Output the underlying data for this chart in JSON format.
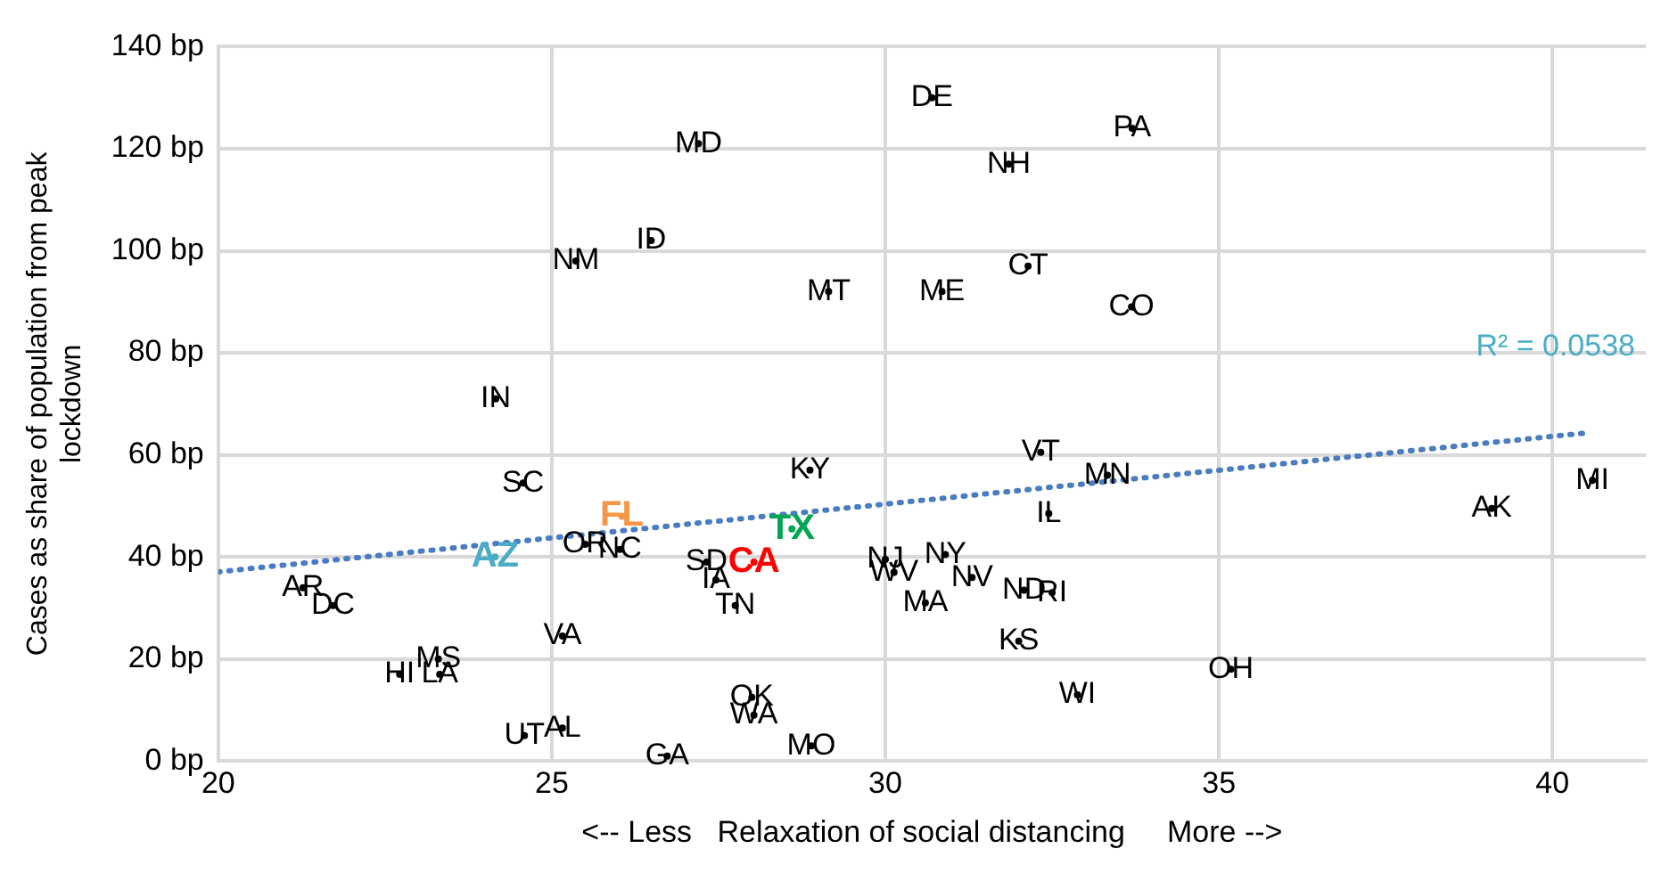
{
  "chart_data": {
    "type": "scatter",
    "xlabel": "<-- Less   Relaxation of social distancing     More -->",
    "ylabel": "Cases as share of population from peak lockdown",
    "xlim": [
      20,
      41.4
    ],
    "xticks": [
      20,
      25,
      30,
      35,
      40
    ],
    "ylim": [
      0,
      140
    ],
    "yticks": [
      {
        "value": 0,
        "label": "0 bp"
      },
      {
        "value": 20,
        "label": "20 bp"
      },
      {
        "value": 40,
        "label": "40 bp"
      },
      {
        "value": 60,
        "label": "60 bp"
      },
      {
        "value": 80,
        "label": "80 bp"
      },
      {
        "value": 100,
        "label": "100 bp"
      },
      {
        "value": 120,
        "label": "120 bp"
      },
      {
        "value": 140,
        "label": "140 bp"
      }
    ],
    "grid": true,
    "legend": false,
    "marker": "circle",
    "annotations": [
      "R² = 0.0538"
    ],
    "series": [
      {
        "type": "scatter",
        "color": "#000000",
        "x": [
          30.7,
          27.2,
          33.7,
          31.85,
          25.36,
          26.49,
          29.15,
          30.85,
          32.14,
          33.69,
          24.16,
          24.57,
          26.05,
          24.15,
          25.5,
          26.02,
          27.32,
          28.03,
          28.6,
          28.87,
          27.46,
          27.75,
          21.27,
          21.72,
          25.16,
          23.3,
          22.72,
          23.32,
          24.59,
          25.16,
          26.73,
          28.0,
          28.03,
          28.89,
          30.0,
          30.13,
          30.9,
          31.3,
          30.6,
          32.08,
          32.5,
          32.0,
          32.88,
          35.18,
          32.33,
          33.33,
          32.45,
          39.09,
          40.6
        ],
        "values": [
          130,
          121,
          124,
          117,
          98,
          102,
          92,
          92,
          97,
          89,
          71,
          54.5,
          48,
          40,
          42.5,
          41.5,
          39,
          39,
          45.5,
          57,
          35.5,
          30.5,
          34,
          30.5,
          24.5,
          20,
          17,
          17,
          5,
          6.5,
          1,
          12.5,
          9,
          3,
          39.5,
          37,
          40.5,
          36,
          31,
          33.5,
          33,
          23.5,
          13,
          18,
          60.5,
          56,
          48.5,
          49.5,
          55
        ],
        "value_labels": [
          "DE",
          "MD",
          "PA",
          "NH",
          "NM",
          "ID",
          "MT",
          "ME",
          "CT",
          "CO",
          "IN",
          "SC",
          "FL",
          "AZ",
          "OR",
          "NC",
          "SD",
          "CA",
          "TX",
          "KY",
          "IA",
          "TN",
          "AR",
          "DC",
          "VA",
          "MS",
          "HI",
          "LA",
          "UT",
          "AL",
          "GA",
          "OK",
          "WA",
          "MO",
          "NJ",
          "WV",
          "NY",
          "NV",
          "MA",
          "ND",
          "RI",
          "KS",
          "WI",
          "OH",
          "VT",
          "MN",
          "IL",
          "AK",
          "MI"
        ],
        "colors": [
          "#000000",
          "#000000",
          "#000000",
          "#000000",
          "#000000",
          "#000000",
          "#000000",
          "#000000",
          "#000000",
          "#000000",
          "#000000",
          "#000000",
          "#f79646",
          "#4bacc6",
          "#000000",
          "#000000",
          "#000000",
          "#ff0000",
          "#00a651",
          "#000000",
          "#000000",
          "#000000",
          "#000000",
          "#000000",
          "#000000",
          "#000000",
          "#000000",
          "#000000",
          "#000000",
          "#000000",
          "#000000",
          "#000000",
          "#000000",
          "#000000",
          "#000000",
          "#000000",
          "#000000",
          "#000000",
          "#000000",
          "#000000",
          "#000000",
          "#000000",
          "#000000",
          "#000000",
          "#000000",
          "#000000",
          "#000000",
          "#000000",
          "#000000"
        ]
      },
      {
        "type": "line",
        "color": "#4a7cc0",
        "line_style": "dotted",
        "marker": "none",
        "x": [
          20,
          40.5
        ],
        "values": [
          37.1,
          64.3
        ]
      }
    ]
  }
}
